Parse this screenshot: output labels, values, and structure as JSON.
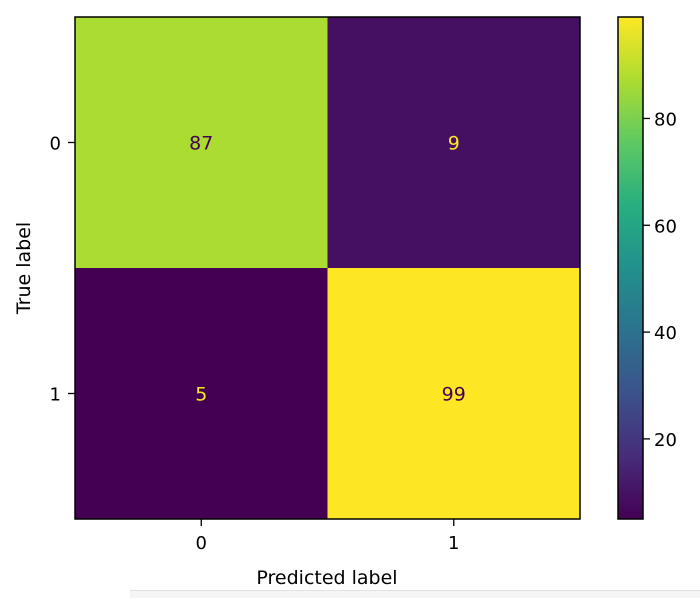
{
  "chart_data": {
    "type": "heatmap",
    "title": "",
    "xlabel": "Predicted label",
    "ylabel": "True label",
    "x_categories": [
      "0",
      "1"
    ],
    "y_categories": [
      "0",
      "1"
    ],
    "matrix": [
      [
        87,
        9
      ],
      [
        5,
        99
      ]
    ],
    "value_range": [
      5,
      99
    ],
    "colormap": "viridis",
    "colorbar": {
      "ticks": [
        20,
        40,
        60,
        80
      ],
      "tick_labels": [
        "20",
        "40",
        "60",
        "80"
      ],
      "range": [
        5,
        99
      ]
    },
    "grid": false,
    "legend": "colorbar-right"
  }
}
